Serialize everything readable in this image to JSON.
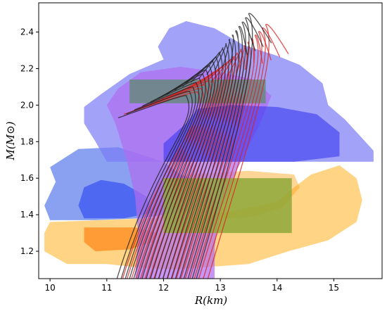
{
  "chart_data": {
    "type": "line",
    "title": "",
    "xlabel": "R(km)",
    "ylabel": "M(M⊙)",
    "xlim": [
      9.8,
      15.85
    ],
    "ylim": [
      1.05,
      2.56
    ],
    "grid": false,
    "legend": "none",
    "x_ticks": [
      10,
      11,
      12,
      13,
      14,
      15
    ],
    "y_ticks": [
      1.2,
      1.4,
      1.6,
      1.8,
      2.0,
      2.2,
      2.4
    ],
    "x_tick_labels": [
      "10",
      "11",
      "12",
      "13",
      "14",
      "15"
    ],
    "y_tick_labels": [
      "1.2",
      "1.4",
      "1.6",
      "1.8",
      "2.0",
      "2.2",
      "2.4"
    ],
    "regions": [
      {
        "color": "#ffb733",
        "opacity": 0.6,
        "points": [
          [
            10.0,
            1.36
          ],
          [
            10.9,
            1.37
          ],
          [
            12.5,
            1.39
          ],
          [
            13.2,
            1.42
          ],
          [
            14.0,
            1.47
          ],
          [
            14.3,
            1.55
          ],
          [
            14.6,
            1.62
          ],
          [
            15.1,
            1.67
          ],
          [
            15.4,
            1.6
          ],
          [
            15.5,
            1.48
          ],
          [
            15.4,
            1.36
          ],
          [
            14.9,
            1.26
          ],
          [
            14.2,
            1.2
          ],
          [
            13.5,
            1.13
          ],
          [
            12.2,
            1.1
          ],
          [
            11.6,
            1.11
          ],
          [
            11.0,
            1.13
          ],
          [
            10.3,
            1.13
          ],
          [
            9.9,
            1.2
          ],
          [
            9.9,
            1.3
          ]
        ]
      },
      {
        "color": "#ffa41a",
        "opacity": 0.45,
        "points": [
          [
            11.9,
            1.38
          ],
          [
            12.8,
            1.37
          ],
          [
            13.6,
            1.39
          ],
          [
            14.1,
            1.44
          ],
          [
            14.4,
            1.55
          ],
          [
            14.3,
            1.62
          ],
          [
            13.5,
            1.64
          ],
          [
            12.4,
            1.62
          ],
          [
            11.9,
            1.58
          ],
          [
            11.7,
            1.46
          ]
        ]
      },
      {
        "color": "#ff7700",
        "opacity": 0.6,
        "points": [
          [
            10.6,
            1.33
          ],
          [
            11.5,
            1.33
          ],
          [
            11.9,
            1.3
          ],
          [
            11.8,
            1.25
          ],
          [
            11.4,
            1.21
          ],
          [
            10.8,
            1.2
          ],
          [
            10.6,
            1.25
          ]
        ]
      },
      {
        "color": "#3a62e6",
        "opacity": 0.6,
        "points": [
          [
            10.0,
            1.37
          ],
          [
            10.8,
            1.37
          ],
          [
            11.6,
            1.38
          ],
          [
            12.4,
            1.42
          ],
          [
            12.9,
            1.47
          ],
          [
            12.8,
            1.56
          ],
          [
            12.3,
            1.62
          ],
          [
            12.0,
            1.69
          ],
          [
            11.2,
            1.77
          ],
          [
            10.5,
            1.76
          ],
          [
            10.3,
            1.72
          ],
          [
            10.0,
            1.66
          ],
          [
            10.1,
            1.58
          ],
          [
            9.9,
            1.45
          ]
        ]
      },
      {
        "color": "#1f3af2",
        "opacity": 0.55,
        "points": [
          [
            10.6,
            1.38
          ],
          [
            11.3,
            1.38
          ],
          [
            11.8,
            1.41
          ],
          [
            11.7,
            1.5
          ],
          [
            11.3,
            1.57
          ],
          [
            10.9,
            1.59
          ],
          [
            10.6,
            1.55
          ],
          [
            10.5,
            1.45
          ]
        ]
      },
      {
        "color": "#7b7cf5",
        "opacity": 0.7,
        "points": [
          [
            11.0,
            1.69
          ],
          [
            15.7,
            1.69
          ],
          [
            15.7,
            1.75
          ],
          [
            15.2,
            1.92
          ],
          [
            14.9,
            2.0
          ],
          [
            14.8,
            2.12
          ],
          [
            14.4,
            2.22
          ],
          [
            14.0,
            2.27
          ],
          [
            13.4,
            2.33
          ],
          [
            12.9,
            2.42
          ],
          [
            12.4,
            2.46
          ],
          [
            12.1,
            2.42
          ],
          [
            11.9,
            2.32
          ],
          [
            12.0,
            2.25
          ],
          [
            11.4,
            2.17
          ],
          [
            10.9,
            2.06
          ],
          [
            10.6,
            1.99
          ],
          [
            10.6,
            1.9
          ],
          [
            10.8,
            1.8
          ]
        ]
      },
      {
        "color": "#b06ef0",
        "opacity": 0.72,
        "points": [
          [
            11.5,
            1.05
          ],
          [
            12.9,
            1.05
          ],
          [
            12.9,
            1.22
          ],
          [
            13.0,
            1.42
          ],
          [
            13.3,
            1.65
          ],
          [
            13.7,
            1.9
          ],
          [
            13.9,
            2.05
          ],
          [
            13.6,
            2.14
          ],
          [
            13.0,
            2.18
          ],
          [
            12.3,
            2.21
          ],
          [
            11.6,
            2.18
          ],
          [
            11.2,
            2.09
          ],
          [
            11.0,
            2.0
          ],
          [
            11.15,
            1.9
          ],
          [
            11.35,
            1.7
          ],
          [
            11.5,
            1.5
          ],
          [
            11.55,
            1.3
          ]
        ]
      },
      {
        "color": "#3838f0",
        "opacity": 0.6,
        "points": [
          [
            12.0,
            1.69
          ],
          [
            13.1,
            1.69
          ],
          [
            14.3,
            1.69
          ],
          [
            15.1,
            1.72
          ],
          [
            15.1,
            1.85
          ],
          [
            14.7,
            1.95
          ],
          [
            14.0,
            1.99
          ],
          [
            13.2,
            2.0
          ],
          [
            12.6,
            1.98
          ],
          [
            12.4,
            1.9
          ],
          [
            12.0,
            1.79
          ]
        ]
      },
      {
        "color": "#5a8a66",
        "opacity": 0.72,
        "points": [
          [
            11.4,
            2.01
          ],
          [
            13.8,
            2.01
          ],
          [
            13.8,
            2.14
          ],
          [
            11.4,
            2.14
          ]
        ]
      },
      {
        "color": "#8ea83a",
        "opacity": 0.85,
        "points": [
          [
            12.0,
            1.3
          ],
          [
            14.26,
            1.3
          ],
          [
            14.26,
            1.6
          ],
          [
            12.0,
            1.6
          ]
        ]
      }
    ],
    "curve_family": [
      {
        "color": "#dd2222",
        "count": 20,
        "start_r": [
          11.3,
          14.2
        ],
        "peak_r": [
          12.6,
          13.8
        ],
        "peak_m": [
          2.07,
          2.44
        ],
        "base_r": [
          11.8,
          13.3
        ]
      },
      {
        "color": "#222222",
        "count": 20,
        "start_r": [
          11.2,
          13.9
        ],
        "peak_r": [
          12.4,
          13.5
        ],
        "peak_m": [
          2.05,
          2.5
        ],
        "base_r": [
          11.7,
          13.1
        ]
      }
    ]
  }
}
